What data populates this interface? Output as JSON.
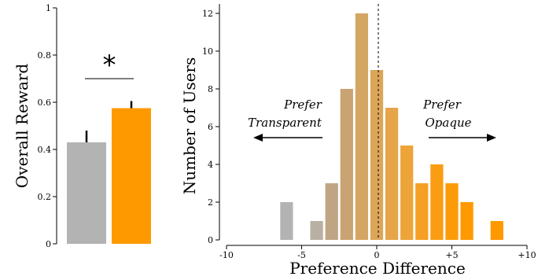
{
  "chart_data": [
    {
      "type": "bar",
      "ylabel": "Overall Reward",
      "ylim": [
        0,
        1
      ],
      "yticks": [
        "0",
        "0.2",
        "0.4",
        "0.6",
        "0.8",
        "1"
      ],
      "categories": [
        "",
        ""
      ],
      "values": [
        0.43,
        0.575
      ],
      "error_upper": [
        0.48,
        0.605
      ],
      "colors": [
        "#b3b3b3",
        "#ff9900"
      ],
      "significance": "*"
    },
    {
      "type": "bar",
      "xlabel": "Preference Difference",
      "ylabel": "Number of Users",
      "xlim": [
        -10,
        10
      ],
      "ylim": [
        0,
        12.5
      ],
      "xticks": [
        "-10",
        "-5",
        "0",
        "+5",
        "+10"
      ],
      "yticks": [
        "0",
        "2",
        "4",
        "6",
        "8",
        "10",
        "12"
      ],
      "bins": [
        {
          "x": -6,
          "count": 2,
          "color": "#b3b3b3"
        },
        {
          "x": -4,
          "count": 1,
          "color": "#b8b0a3"
        },
        {
          "x": -3,
          "count": 3,
          "color": "#c0a585"
        },
        {
          "x": -2,
          "count": 8,
          "color": "#caa372"
        },
        {
          "x": -1,
          "count": 12,
          "color": "#d4a663"
        },
        {
          "x": 0,
          "count": 9,
          "color": "#dca658"
        },
        {
          "x": 1,
          "count": 7,
          "color": "#e5a548"
        },
        {
          "x": 2,
          "count": 5,
          "color": "#eda438"
        },
        {
          "x": 3,
          "count": 3,
          "color": "#f5a024"
        },
        {
          "x": 4,
          "count": 4,
          "color": "#fa9d12"
        },
        {
          "x": 5,
          "count": 3,
          "color": "#fc9b08"
        },
        {
          "x": 6,
          "count": 2,
          "color": "#ff9900"
        },
        {
          "x": 8,
          "count": 1,
          "color": "#ff9900"
        }
      ],
      "annotations": {
        "left_line1": "Prefer",
        "left_line2": "Transparent",
        "right_line1": "Prefer",
        "right_line2": "Opaque"
      }
    }
  ]
}
